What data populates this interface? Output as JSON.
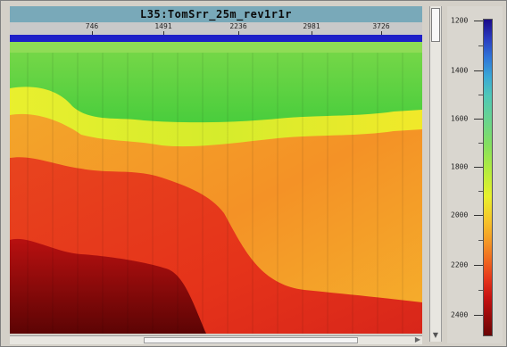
{
  "window": {
    "title": "L35:TomSrr_25m_rev1r1r"
  },
  "x_axis": {
    "ticks": [
      "746",
      "1491",
      "2236",
      "2981",
      "3726"
    ]
  },
  "color_scale": {
    "ticks": [
      "1200",
      "1400",
      "1600",
      "1800",
      "2000",
      "2200",
      "2400"
    ]
  },
  "colors": {
    "frame": "#d4d0c8",
    "title_bar": "#79a9b9",
    "top_band": "#1e1fc8",
    "green": "#3ecb3a",
    "yellow": "#dfee2a",
    "orange": "#f59a26",
    "red": "#e8341c",
    "dark_red": "#6a0505"
  }
}
